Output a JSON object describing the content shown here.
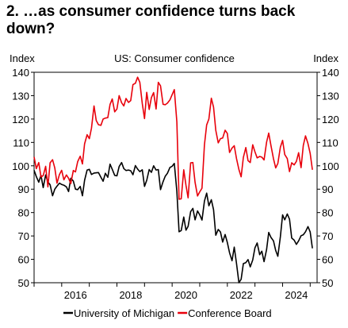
{
  "title": "2. …as consumer confidence turns back down?",
  "chart_data": {
    "type": "line",
    "subtitle": "US: Consumer confidence",
    "ylabel_left": "Index",
    "ylabel_right": "Index",
    "xlim": [
      2015.0,
      2025.25
    ],
    "ylim": [
      50,
      140
    ],
    "yticks": [
      50,
      60,
      70,
      80,
      90,
      100,
      110,
      120,
      130,
      140
    ],
    "xticks": [
      2016,
      2018,
      2020,
      2022,
      2024
    ],
    "grid": false,
    "legend_position": "bottom",
    "series": [
      {
        "name": "University of Michigan",
        "color": "#000000",
        "x": [
          2015.0,
          2015.08,
          2015.17,
          2015.25,
          2015.33,
          2015.42,
          2015.5,
          2015.58,
          2015.67,
          2015.75,
          2015.83,
          2015.92,
          2016.0,
          2016.08,
          2016.17,
          2016.25,
          2016.33,
          2016.42,
          2016.5,
          2016.58,
          2016.67,
          2016.75,
          2016.83,
          2016.92,
          2017.0,
          2017.08,
          2017.17,
          2017.25,
          2017.33,
          2017.42,
          2017.5,
          2017.58,
          2017.67,
          2017.75,
          2017.83,
          2017.92,
          2018.0,
          2018.08,
          2018.17,
          2018.25,
          2018.33,
          2018.42,
          2018.5,
          2018.58,
          2018.67,
          2018.75,
          2018.83,
          2018.92,
          2019.0,
          2019.08,
          2019.17,
          2019.25,
          2019.33,
          2019.42,
          2019.5,
          2019.58,
          2019.67,
          2019.75,
          2019.83,
          2019.92,
          2020.0,
          2020.08,
          2020.17,
          2020.25,
          2020.33,
          2020.42,
          2020.5,
          2020.58,
          2020.67,
          2020.75,
          2020.83,
          2020.92,
          2021.0,
          2021.08,
          2021.17,
          2021.25,
          2021.33,
          2021.42,
          2021.5,
          2021.58,
          2021.67,
          2021.75,
          2021.83,
          2021.92,
          2022.0,
          2022.08,
          2022.17,
          2022.25,
          2022.33,
          2022.42,
          2022.5,
          2022.58,
          2022.67,
          2022.75,
          2022.83,
          2022.92,
          2023.0,
          2023.08,
          2023.17,
          2023.25,
          2023.33,
          2023.42,
          2023.5,
          2023.58,
          2023.67,
          2023.75,
          2023.83,
          2023.92,
          2024.0,
          2024.08,
          2024.17,
          2024.25,
          2024.33,
          2024.42,
          2024.5,
          2024.58,
          2024.67,
          2024.75,
          2024.83,
          2024.92,
          2025.0,
          2025.08
        ],
        "values": [
          98.1,
          95.4,
          93.0,
          95.9,
          90.7,
          96.1,
          93.1,
          91.9,
          87.2,
          90.0,
          91.3,
          92.6,
          92.0,
          91.7,
          91.0,
          89.0,
          94.7,
          93.5,
          90.0,
          89.8,
          91.2,
          87.2,
          93.8,
          98.2,
          98.5,
          96.3,
          96.9,
          97.0,
          97.1,
          95.1,
          93.4,
          96.8,
          95.1,
          100.7,
          98.5,
          95.9,
          95.7,
          99.7,
          101.4,
          98.8,
          98.0,
          98.2,
          97.9,
          96.2,
          100.1,
          98.6,
          97.5,
          98.3,
          91.2,
          93.8,
          98.4,
          97.2,
          100.0,
          98.2,
          98.4,
          89.8,
          93.2,
          95.5,
          96.8,
          99.3,
          99.8,
          101.0,
          89.1,
          71.8,
          72.3,
          78.1,
          72.5,
          74.1,
          80.4,
          81.8,
          76.9,
          80.7,
          79.0,
          76.8,
          84.9,
          88.3,
          82.9,
          85.5,
          81.2,
          70.3,
          72.8,
          71.7,
          67.4,
          70.6,
          67.2,
          62.8,
          59.4,
          65.2,
          58.4,
          50.0,
          51.5,
          58.2,
          58.6,
          59.9,
          56.8,
          59.7,
          64.9,
          67.0,
          62.0,
          63.5,
          59.0,
          64.2,
          71.5,
          69.4,
          67.9,
          63.8,
          61.3,
          69.7,
          79.0,
          76.9,
          79.4,
          77.2,
          69.1,
          68.2,
          66.4,
          67.9,
          70.1,
          70.5,
          71.8,
          74.0,
          71.7,
          64.7
        ]
      },
      {
        "name": "Conference Board",
        "color": "#e8000b",
        "x": [
          2015.0,
          2015.08,
          2015.17,
          2015.25,
          2015.33,
          2015.42,
          2015.5,
          2015.58,
          2015.67,
          2015.75,
          2015.83,
          2015.92,
          2016.0,
          2016.08,
          2016.17,
          2016.25,
          2016.33,
          2016.42,
          2016.5,
          2016.58,
          2016.67,
          2016.75,
          2016.83,
          2016.92,
          2017.0,
          2017.08,
          2017.17,
          2017.25,
          2017.33,
          2017.42,
          2017.5,
          2017.58,
          2017.67,
          2017.75,
          2017.83,
          2017.92,
          2018.0,
          2018.08,
          2018.17,
          2018.25,
          2018.33,
          2018.42,
          2018.5,
          2018.58,
          2018.67,
          2018.75,
          2018.83,
          2018.92,
          2019.0,
          2019.08,
          2019.17,
          2019.25,
          2019.33,
          2019.42,
          2019.5,
          2019.58,
          2019.67,
          2019.75,
          2019.83,
          2019.92,
          2020.0,
          2020.08,
          2020.17,
          2020.25,
          2020.33,
          2020.42,
          2020.5,
          2020.58,
          2020.67,
          2020.75,
          2020.83,
          2020.92,
          2021.0,
          2021.08,
          2021.17,
          2021.25,
          2021.33,
          2021.42,
          2021.5,
          2021.58,
          2021.67,
          2021.75,
          2021.83,
          2021.92,
          2022.0,
          2022.08,
          2022.17,
          2022.25,
          2022.33,
          2022.42,
          2022.5,
          2022.58,
          2022.67,
          2022.75,
          2022.83,
          2022.92,
          2023.0,
          2023.08,
          2023.17,
          2023.25,
          2023.33,
          2023.42,
          2023.5,
          2023.58,
          2023.67,
          2023.75,
          2023.83,
          2023.92,
          2024.0,
          2024.08,
          2024.17,
          2024.25,
          2024.33,
          2024.42,
          2024.5,
          2024.58,
          2024.67,
          2024.75,
          2024.83,
          2024.92,
          2025.0,
          2025.08
        ],
        "values": [
          103.8,
          98.8,
          101.4,
          95.2,
          95.8,
          99.8,
          91.0,
          101.3,
          102.6,
          99.1,
          92.6,
          96.3,
          98.1,
          94.0,
          96.1,
          94.7,
          92.4,
          98.0,
          97.4,
          101.8,
          104.1,
          100.8,
          109.4,
          113.3,
          111.6,
          116.1,
          125.6,
          119.4,
          117.6,
          117.3,
          120.0,
          120.4,
          120.6,
          126.2,
          128.6,
          123.1,
          124.3,
          130.0,
          127.0,
          125.6,
          128.8,
          127.1,
          127.9,
          134.7,
          135.3,
          137.9,
          135.7,
          126.6,
          120.2,
          131.4,
          124.1,
          129.2,
          131.3,
          124.3,
          135.7,
          134.2,
          126.3,
          126.1,
          126.8,
          128.2,
          130.4,
          132.6,
          118.8,
          85.7,
          85.9,
          98.3,
          91.7,
          86.3,
          101.3,
          101.4,
          92.9,
          87.1,
          88.9,
          90.4,
          109.0,
          117.5,
          120.0,
          128.9,
          125.1,
          115.2,
          109.8,
          111.6,
          111.9,
          115.2,
          113.8,
          105.7,
          107.6,
          108.6,
          103.2,
          98.4,
          95.3,
          103.6,
          107.8,
          102.2,
          101.4,
          109.0,
          106.0,
          103.4,
          104.0,
          103.7,
          102.5,
          110.1,
          114.0,
          108.7,
          103.0,
          99.1,
          101.0,
          108.0,
          110.9,
          104.8,
          103.1,
          97.5,
          101.3,
          100.4,
          101.9,
          105.6,
          99.2,
          108.7,
          112.8,
          109.5,
          105.3,
          98.3
        ]
      }
    ]
  }
}
